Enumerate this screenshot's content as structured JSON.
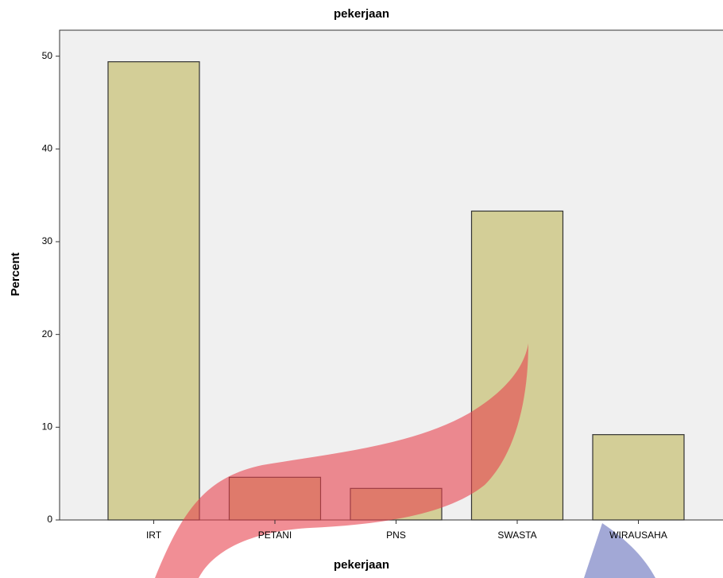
{
  "chart_data": {
    "type": "bar",
    "title": "pekerjaan",
    "x_label": "pekerjaan",
    "y_label": "Percent",
    "categories": [
      "IRT",
      "PETANI",
      "PNS",
      "SWASTA",
      "WIRAUSAHA"
    ],
    "values": [
      49.4,
      4.6,
      3.4,
      33.3,
      9.2
    ],
    "color": "#d3ce97",
    "ylim": [
      0,
      52.8
    ],
    "yticks": [
      0,
      10,
      20,
      30,
      40,
      50
    ],
    "grid": false
  }
}
